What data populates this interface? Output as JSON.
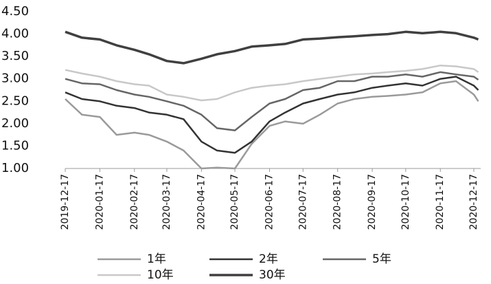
{
  "chart_data": {
    "type": "line",
    "x": [
      "2019-12-17",
      "2020-01-01",
      "2020-01-17",
      "2020-02-01",
      "2020-02-17",
      "2020-03-01",
      "2020-03-17",
      "2020-04-01",
      "2020-04-17",
      "2020-05-01",
      "2020-05-17",
      "2020-06-01",
      "2020-06-17",
      "2020-07-01",
      "2020-07-17",
      "2020-08-01",
      "2020-08-17",
      "2020-09-01",
      "2020-09-17",
      "2020-10-01",
      "2020-10-17",
      "2020-11-01",
      "2020-11-17",
      "2020-12-01",
      "2020-12-17",
      "2020-12-21"
    ],
    "series": [
      {
        "name": "1年",
        "color": "#9a9a9a",
        "width": 2.5,
        "values": [
          2.55,
          2.2,
          2.15,
          1.75,
          1.8,
          1.75,
          1.6,
          1.4,
          1.0,
          1.02,
          1.0,
          1.55,
          1.95,
          2.05,
          2.0,
          2.2,
          2.45,
          2.55,
          2.6,
          2.62,
          2.65,
          2.7,
          2.9,
          2.95,
          2.65,
          2.5
        ]
      },
      {
        "name": "2年",
        "color": "#333333",
        "width": 2.5,
        "values": [
          2.7,
          2.55,
          2.5,
          2.4,
          2.35,
          2.25,
          2.2,
          2.1,
          1.6,
          1.4,
          1.35,
          1.6,
          2.05,
          2.25,
          2.45,
          2.55,
          2.65,
          2.7,
          2.8,
          2.85,
          2.9,
          2.85,
          3.0,
          3.05,
          2.85,
          2.75
        ]
      },
      {
        "name": "5年",
        "color": "#666666",
        "width": 2.5,
        "values": [
          3.0,
          2.9,
          2.88,
          2.75,
          2.65,
          2.6,
          2.5,
          2.4,
          2.2,
          1.9,
          1.85,
          2.15,
          2.45,
          2.55,
          2.75,
          2.8,
          2.95,
          2.95,
          3.05,
          3.05,
          3.1,
          3.05,
          3.15,
          3.1,
          3.05,
          2.98
        ]
      },
      {
        "name": "10年",
        "color": "#c8c8c8",
        "width": 2.5,
        "values": [
          3.2,
          3.12,
          3.05,
          2.95,
          2.88,
          2.85,
          2.65,
          2.6,
          2.52,
          2.55,
          2.7,
          2.8,
          2.85,
          2.88,
          2.95,
          3.0,
          3.05,
          3.1,
          3.12,
          3.15,
          3.18,
          3.22,
          3.3,
          3.28,
          3.22,
          3.15
        ]
      },
      {
        "name": "30年",
        "color": "#404040",
        "width": 3.5,
        "values": [
          4.05,
          3.92,
          3.88,
          3.75,
          3.65,
          3.55,
          3.4,
          3.35,
          3.45,
          3.55,
          3.62,
          3.72,
          3.75,
          3.78,
          3.88,
          3.9,
          3.93,
          3.95,
          3.98,
          4.0,
          4.05,
          4.02,
          4.05,
          4.02,
          3.92,
          3.88
        ]
      }
    ],
    "xlim": [
      "2019-12-17",
      "2020-12-21"
    ],
    "xticks": [
      "2019-12-17",
      "2020-01-17",
      "2020-02-17",
      "2020-03-17",
      "2020-04-17",
      "2020-05-17",
      "2020-06-17",
      "2020-07-17",
      "2020-08-17",
      "2020-09-17",
      "2020-10-17",
      "2020-11-17",
      "2020-12-17"
    ],
    "ylim": [
      1.0,
      4.5
    ],
    "yticks": [
      {
        "value": 1.0,
        "label": "1.00"
      },
      {
        "value": 1.5,
        "label": "1.50"
      },
      {
        "value": 2.0,
        "label": "2.00"
      },
      {
        "value": 2.5,
        "label": "2.50"
      },
      {
        "value": 3.0,
        "label": "3.00"
      },
      {
        "value": 3.5,
        "label": "3.50"
      },
      {
        "value": 4.0,
        "label": "4.00"
      },
      {
        "value": 4.5,
        "label": "4.50"
      }
    ],
    "grid": false
  }
}
